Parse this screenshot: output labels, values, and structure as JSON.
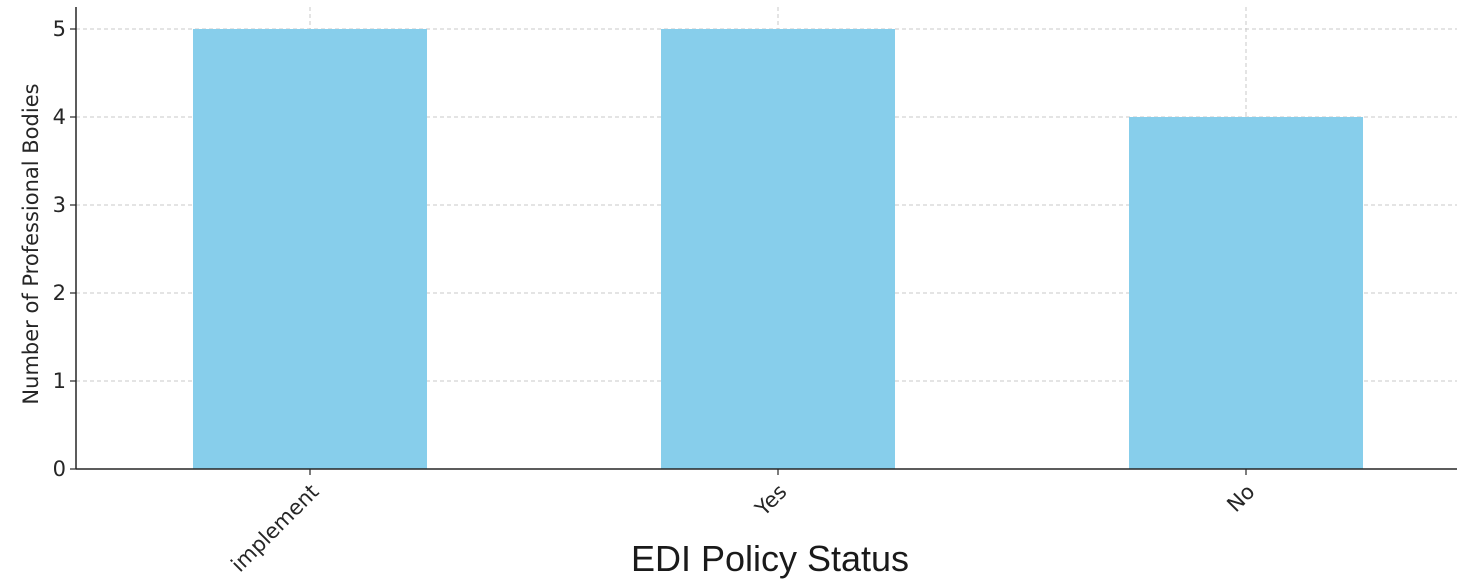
{
  "chart_data": {
    "type": "bar",
    "categories": [
      "implement",
      "Yes",
      "No"
    ],
    "values": [
      5,
      5,
      4
    ],
    "title": "",
    "xlabel": "EDI Policy Status",
    "ylabel": "Number of Professional Bodies",
    "ylim": [
      0,
      5.25
    ],
    "yticks": [
      0,
      1,
      2,
      3,
      4,
      5
    ],
    "grid": true,
    "bar_color": "#87CEEB",
    "grid_color": "#c8c8c8",
    "axis_color": "#262626",
    "xtick_rotation_deg": 45
  }
}
